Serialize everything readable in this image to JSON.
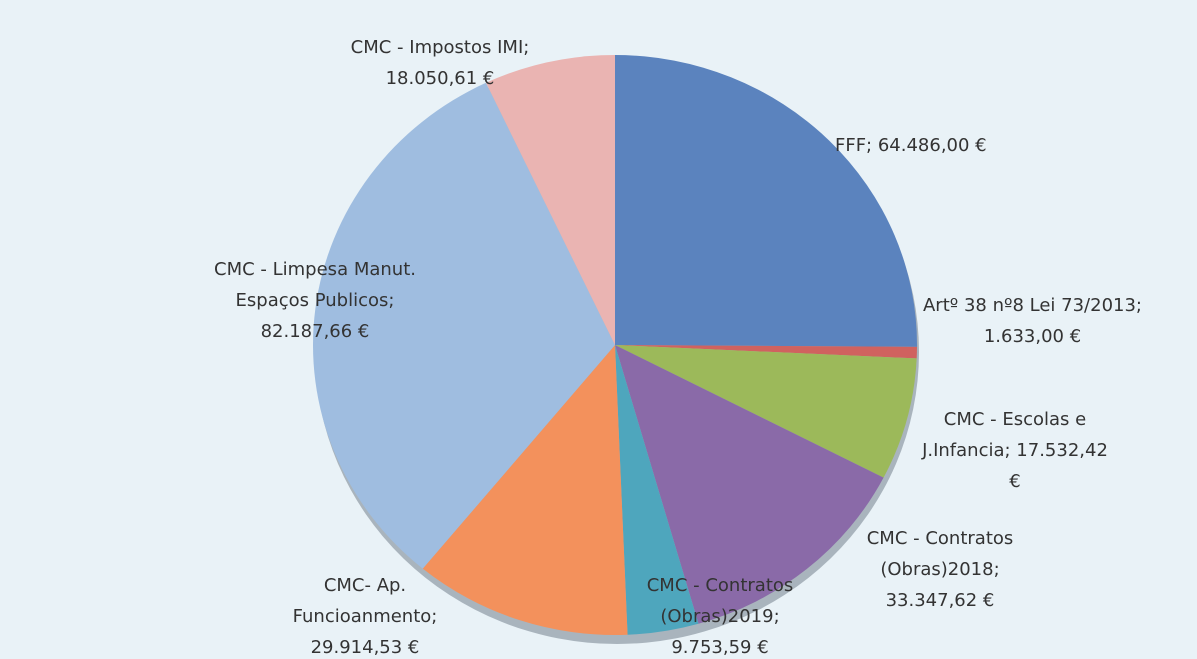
{
  "chart_data": {
    "type": "pie",
    "values": [
      64486.0,
      1633.0,
      17532.42,
      33347.62,
      9753.59,
      29914.53,
      82187.66,
      18050.61
    ],
    "value_labels": [
      "FFF; 64.486,00 €",
      "Artº 38 nº8 Lei 73/2013; 1.633,00 €",
      "CMC - Escolas e J.Infancia; 17.532,42 €",
      "CMC - Contratos (Obras)2018; 33.347,62 €",
      "CMC - Contratos (Obras)2019; 9.753,59 €",
      "CMC- Ap. Funcioanmento; 29.914,53 €",
      "CMC - Limpesa Manut. Espaços Publicos; 82.187,66 €",
      "CMC - Impostos IMI; 18.050,61 €"
    ],
    "colors": [
      "#5b83be",
      "#d0625f",
      "#9cb95a",
      "#8a6aa8",
      "#4ea6bd",
      "#f3915c",
      "#9fbde0",
      "#eab4b2"
    ]
  }
}
